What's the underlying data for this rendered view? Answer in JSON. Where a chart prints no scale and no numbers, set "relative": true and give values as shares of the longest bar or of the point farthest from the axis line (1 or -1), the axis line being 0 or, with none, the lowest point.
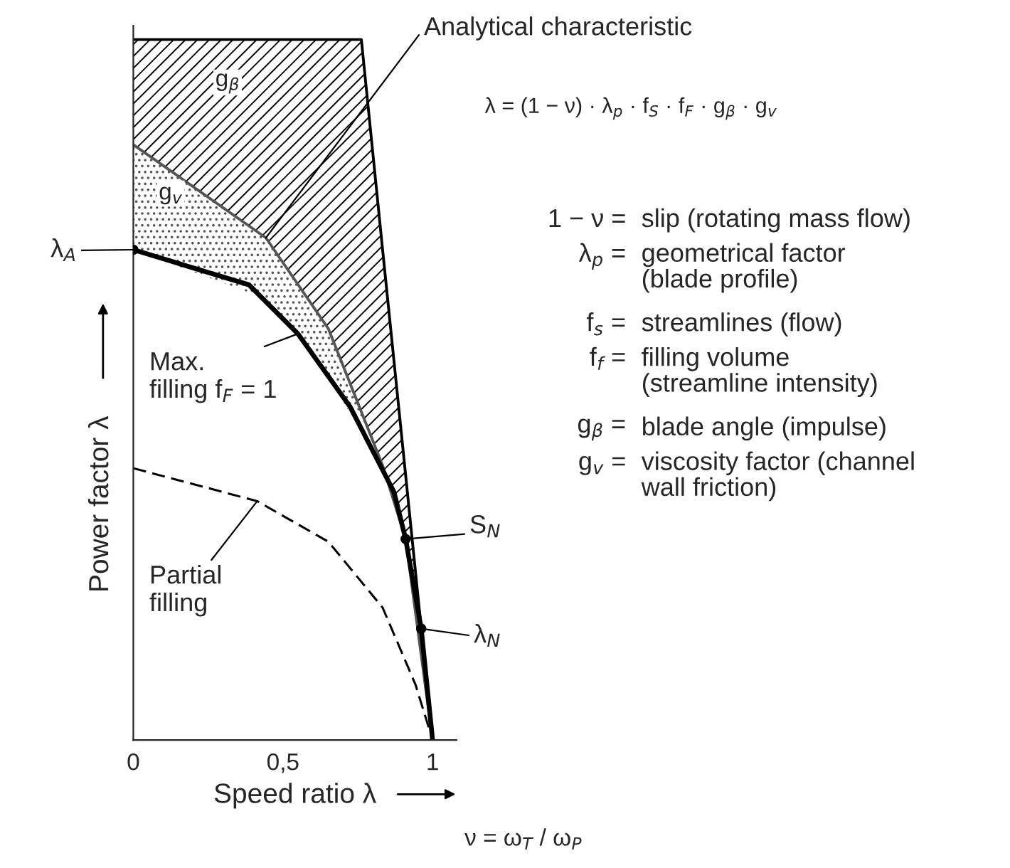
{
  "chart_data": {
    "type": "line",
    "relative": true,
    "xlabel": "Speed ratio λ",
    "ylabel": "Power factor λ",
    "xlim": [
      0,
      1.08
    ],
    "xticks": [
      0,
      {
        "value": 0.5,
        "label": "0,5"
      },
      1
    ],
    "grid": false,
    "legend": false,
    "series": [
      {
        "type": "line",
        "color": "#000000",
        "line_style": "solid",
        "x": [
          0,
          0.443,
          0.652,
          0.762,
          0.833,
          0.91,
          1
        ],
        "values": [
          1,
          1,
          1,
          1,
          0.7,
          0.378,
          0
        ],
        "lower": [
          0.85,
          0.717,
          0.587,
          0.47,
          0.392,
          0.287,
          0
        ],
        "upper": [
          1,
          1,
          1,
          1,
          0.7,
          0.378,
          0
        ]
      },
      {
        "type": "line",
        "color": "#555555",
        "line_style": "solid",
        "x": [
          0,
          0.443,
          0.652,
          0.833,
          0.91,
          1
        ],
        "values": [
          0.85,
          0.717,
          0.587,
          0.392,
          0.287,
          0
        ],
        "lower": [
          0.7,
          0.63,
          0.52,
          0.385,
          0.287,
          0
        ],
        "upper": [
          0.85,
          0.717,
          0.587,
          0.392,
          0.287,
          0
        ]
      },
      {
        "color": "#000000",
        "line_style": "solid",
        "x": [
          0,
          0.386,
          0.55,
          0.724,
          0.871,
          0.91,
          0.962,
          1
        ],
        "values": [
          0.7,
          0.65,
          0.58,
          0.476,
          0.354,
          0.287,
          0.159,
          0
        ]
      },
      {
        "color": "#000000",
        "line_style": "dashed",
        "x": [
          0,
          0.414,
          0.652,
          0.833,
          0.943,
          1
        ],
        "values": [
          0.388,
          0.341,
          0.283,
          0.189,
          0.079,
          0
        ]
      },
      {
        "type": "scatter",
        "color": "#000000",
        "marker": "circle",
        "x": [
          0,
          0.91,
          0.962
        ],
        "values": [
          0.7,
          0.287,
          0.159
        ]
      }
    ],
    "annotations": [
      {
        "text": "λ$_{A}$",
        "x": 0,
        "y": 0.7
      },
      {
        "text": "Analytical characteristic",
        "x": 0.443,
        "y": 0.717
      },
      {
        "text": "Max.\nfilling f$_{F}$ = 1",
        "x": 0.55,
        "y": 0.58
      },
      {
        "text": "Partial\nfilling",
        "x": 0.414,
        "y": 0.341
      },
      {
        "text": "S$_{N}$",
        "x": 0.91,
        "y": 0.287
      },
      {
        "text": "λ$_{N}$",
        "x": 0.962,
        "y": 0.159
      },
      "g$_{β}$",
      "g$_{v}$",
      "λ = (1 − ν) · λ$_{p}$ · f$_{S}$ · f$_{F}$ · g$_{β}$ · g$_{v}$",
      "1 − ν = slip (rotating mass flow)",
      "λ$_{p}$ = geometrical factor\n(blade profile)",
      "f$_{s}$ = streamlines (flow)",
      "f$_{f}$ = filling volume\n(streamline intensity)",
      "g$_{β}$ = blade angle (impulse)",
      "g$_{v}$ = viscosity factor (channel\nwall friction)",
      "ν = ω$_{T}$ / ω$_{P}$"
    ]
  }
}
